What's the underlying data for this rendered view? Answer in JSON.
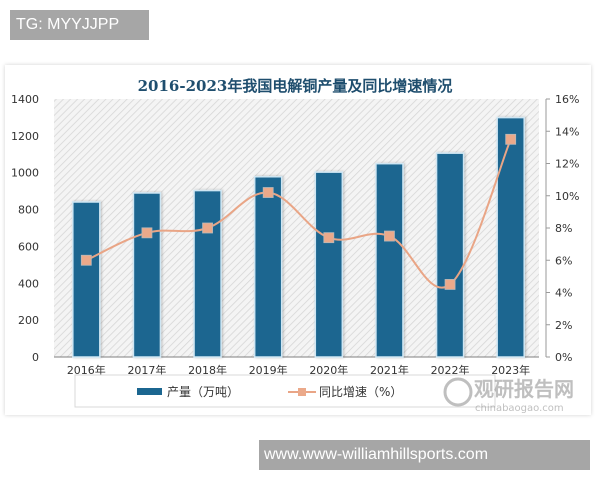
{
  "watermarks": {
    "top_tag": "TG: MYYJJPP",
    "bottom_tag": "www.www-williamhillsports.com",
    "brand_cn": "观研报告网",
    "brand_url": "chinabaogao.com"
  },
  "colors": {
    "bar": "#1b6690",
    "bar_edge": "#cfe6f3",
    "line": "#e9a586",
    "marker": "#eba98a",
    "title": "#1f4e6e",
    "axis_text": "#333333",
    "hatch": "#d9d9d9"
  },
  "chart_data": {
    "type": "bar+line",
    "title": "2016-2023年我国电解铜产量及同比增速情况",
    "categories": [
      "2016年",
      "2017年",
      "2018年",
      "2019年",
      "2020年",
      "2021年",
      "2022年",
      "2023年"
    ],
    "series": [
      {
        "name": "产量（万吨）",
        "type": "bar",
        "axis": "left",
        "values": [
          841,
          890,
          903,
          978,
          1003,
          1049,
          1106,
          1299
        ]
      },
      {
        "name": "同比增速（%）",
        "type": "line",
        "axis": "right",
        "values": [
          6.0,
          7.7,
          8.0,
          10.2,
          7.4,
          7.5,
          4.5,
          13.5
        ]
      }
    ],
    "left_axis": {
      "min": 0,
      "max": 1400,
      "ticks": [
        "0",
        "200",
        "400",
        "600",
        "800",
        "1000",
        "1200",
        "1400"
      ]
    },
    "right_axis": {
      "min": 0,
      "max": 16,
      "ticks": [
        "0%",
        "2%",
        "4%",
        "6%",
        "8%",
        "10%",
        "12%",
        "14%",
        "16%"
      ]
    },
    "xlabel": "",
    "ylabel": "",
    "grid": false,
    "background": "diagonal hatch",
    "legend_position": "bottom",
    "legend": [
      "产量（万吨）",
      "同比增速（%）"
    ]
  }
}
